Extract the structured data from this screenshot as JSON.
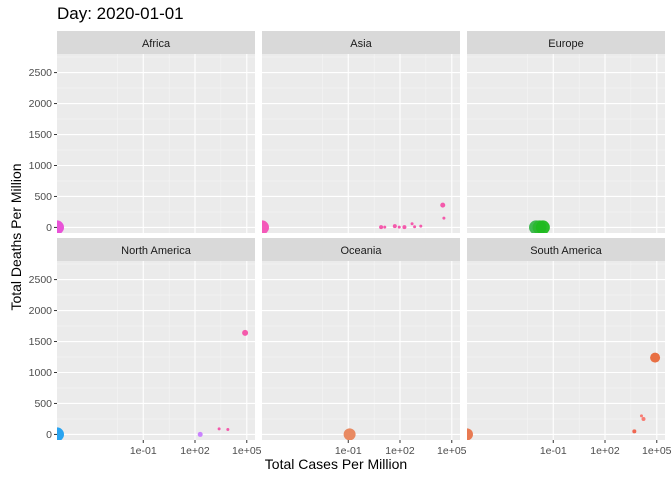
{
  "chart_data": {
    "type": "scatter",
    "title": "Day: 2020-01-01",
    "xlabel": "Total Cases Per Million",
    "ylabel": "Total Deaths Per Million",
    "x_scale": "log10",
    "xlim": [
      1e-06,
      300000
    ],
    "ylim": [
      -90,
      2800
    ],
    "x_ticks": [
      0.1,
      100,
      100000
    ],
    "x_tick_labels": [
      "1e-01",
      "1e+02",
      "1e+05"
    ],
    "y_ticks": [
      0,
      500,
      1000,
      1500,
      2000,
      2500
    ],
    "y_tick_labels": [
      "0",
      "500",
      "1000",
      "1500",
      "2000",
      "2500"
    ],
    "grid": true,
    "legend": "none",
    "facets": [
      {
        "name": "Africa",
        "points": [
          {
            "x": 1e-06,
            "y": 0,
            "size": 7,
            "color": "#e84bd6"
          }
        ]
      },
      {
        "name": "Asia",
        "points": [
          {
            "x": 1e-06,
            "y": 0,
            "size": 7,
            "color": "#f451b6"
          },
          {
            "x": 8,
            "y": 5,
            "size": 2,
            "color": "#f451a8"
          },
          {
            "x": 13,
            "y": 5,
            "size": 1.5,
            "color": "#f451a8"
          },
          {
            "x": 50,
            "y": 20,
            "size": 2,
            "color": "#f451a8"
          },
          {
            "x": 90,
            "y": 5,
            "size": 1.5,
            "color": "#f451a8"
          },
          {
            "x": 180,
            "y": 5,
            "size": 2,
            "color": "#f451a8"
          },
          {
            "x": 500,
            "y": 60,
            "size": 1.5,
            "color": "#f451a8"
          },
          {
            "x": 700,
            "y": 10,
            "size": 1.5,
            "color": "#f451a8"
          },
          {
            "x": 1600,
            "y": 20,
            "size": 1.5,
            "color": "#f451a8"
          },
          {
            "x": 30000,
            "y": 360,
            "size": 2.5,
            "color": "#f451a8"
          },
          {
            "x": 35000,
            "y": 150,
            "size": 1.5,
            "color": "#f451a8"
          }
        ]
      },
      {
        "name": "Europe",
        "points": [
          {
            "x": 0.01,
            "y": 0,
            "size": 7,
            "color": "#39b54a"
          },
          {
            "x": 0.016,
            "y": 0,
            "size": 7,
            "color": "#2ab82e"
          },
          {
            "x": 0.025,
            "y": 0,
            "size": 7,
            "color": "#1fb91f"
          }
        ]
      },
      {
        "name": "North America",
        "points": [
          {
            "x": 1e-06,
            "y": 0,
            "size": 7,
            "color": "#1e9ff0"
          },
          {
            "x": 200,
            "y": 0,
            "size": 2.5,
            "color": "#c77cff"
          },
          {
            "x": 2500,
            "y": 90,
            "size": 1.5,
            "color": "#f451a8"
          },
          {
            "x": 8000,
            "y": 80,
            "size": 1.5,
            "color": "#f451a8"
          },
          {
            "x": 80000,
            "y": 1640,
            "size": 3,
            "color": "#f451a8"
          }
        ]
      },
      {
        "name": "Oceania",
        "points": [
          {
            "x": 0.12,
            "y": 0,
            "size": 6,
            "color": "#e8845a"
          }
        ]
      },
      {
        "name": "South America",
        "points": [
          {
            "x": 1e-06,
            "y": 0,
            "size": 6,
            "color": "#e8744a"
          },
          {
            "x": 5000,
            "y": 50,
            "size": 2,
            "color": "#f0604a"
          },
          {
            "x": 13000,
            "y": 300,
            "size": 1.5,
            "color": "#f8766d"
          },
          {
            "x": 17000,
            "y": 250,
            "size": 2,
            "color": "#f8766d"
          },
          {
            "x": 80000,
            "y": 1240,
            "size": 5,
            "color": "#e8683a"
          }
        ]
      }
    ]
  },
  "colors": {
    "panel_bg": "#ebebeb",
    "strip_bg": "#d9d9d9",
    "grid_major": "#ffffff",
    "grid_minor": "#f5f5f5",
    "axis_text": "#4d4d4d"
  }
}
